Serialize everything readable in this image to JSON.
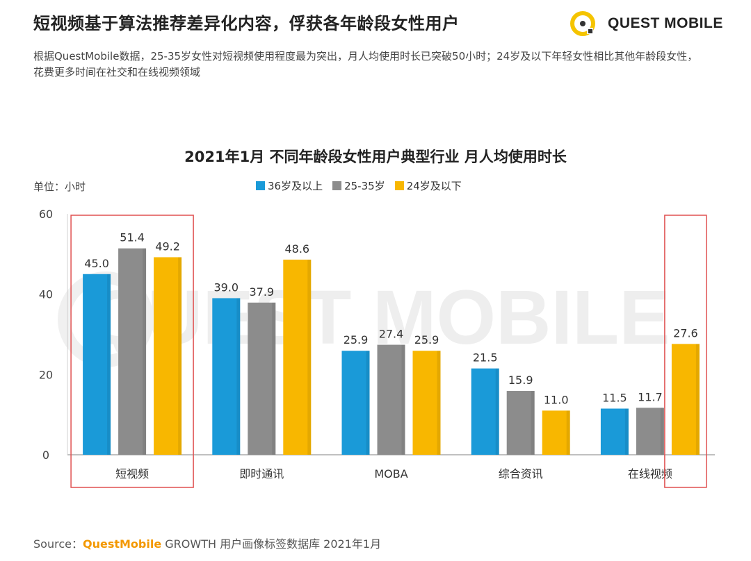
{
  "headline": "短视频基于算法推荐差异化内容，俘获各年龄段女性用户",
  "logo": {
    "text": "QUEST MOBILE",
    "accent": "#f5c400"
  },
  "description": "根据QuestMobile数据，25-35岁女性对短视频使用程度最为突出，月人均使用时长已突破50小时；24岁及以下年轻女性相比其他年龄段女性，花费更多时间在社交和在线视频领域",
  "unit": "单位：小时",
  "source": {
    "prefix": "Source：",
    "brand": "QuestMobile",
    "rest": " GROWTH 用户画像标签数据库 2021年1月"
  },
  "colors": {
    "series": [
      "#1a9ad8",
      "#8c8c8c",
      "#f8b700"
    ],
    "highlight_box": "#e05050",
    "axis": "#9a9a9a",
    "watermark": "#ededed"
  },
  "watermark": "QUEST MOBILE",
  "chart_data": {
    "type": "bar",
    "title": "2021年1月 不同年龄段女性用户典型行业 月人均使用时长",
    "xlabel": "",
    "ylabel": "单位：小时",
    "ylim": [
      0,
      60
    ],
    "yticks": [
      0,
      20,
      40,
      60
    ],
    "categories": [
      "短视频",
      "即时通讯",
      "MOBA",
      "综合资讯",
      "在线视频"
    ],
    "series": [
      {
        "name": "36岁及以上",
        "values": [
          45.0,
          39.0,
          25.9,
          21.5,
          11.5
        ]
      },
      {
        "name": "25-35岁",
        "values": [
          51.4,
          37.9,
          27.4,
          15.9,
          11.7
        ]
      },
      {
        "name": "24岁及以下",
        "values": [
          49.2,
          48.6,
          25.9,
          11.0,
          27.6
        ]
      }
    ],
    "highlights": [
      {
        "category": "短视频"
      },
      {
        "category": "在线视频",
        "series": "24岁及以下"
      }
    ]
  }
}
